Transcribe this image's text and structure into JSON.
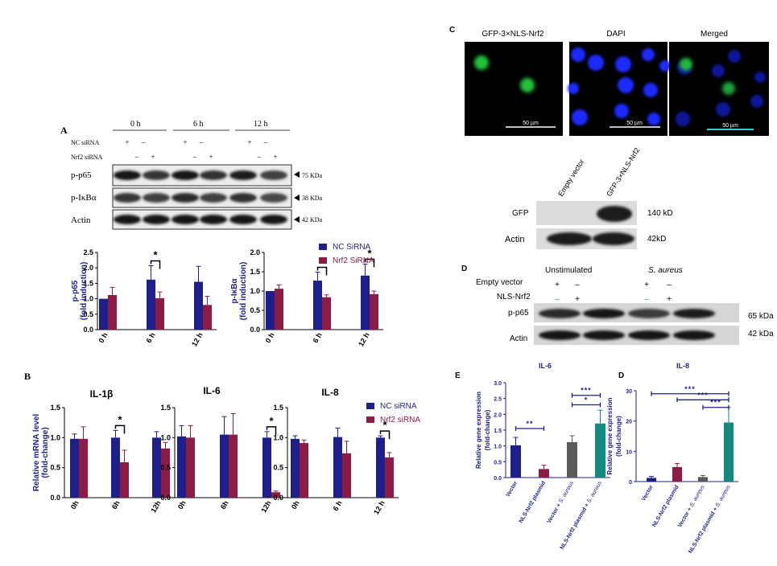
{
  "colors": {
    "navy": "#1f1f8c",
    "maroon": "#8c1c46",
    "gray": "#5a5a5a",
    "teal": "#128a80",
    "blot_bg": "#d9d9d9",
    "cyan": "#33cccc"
  },
  "panel_labels": {
    "a": "A",
    "b": "B",
    "c": "C",
    "d_top": "D",
    "e": "E",
    "d_bottom": "D"
  },
  "blot_a": {
    "groups": [
      "0 h",
      "6 h",
      "12 h"
    ],
    "row_labels": [
      "NC siRNA",
      "Nrf2 siRNA"
    ],
    "nc_signs": [
      "+",
      "–",
      "+",
      "–",
      "+",
      "–"
    ],
    "nrf_signs": [
      "–",
      "+",
      "–",
      "+",
      "–",
      "+"
    ],
    "bands": [
      {
        "label": "p-p65",
        "size": "75 KDa"
      },
      {
        "label": "p-IκBα",
        "size": "38 KDa"
      },
      {
        "label": "Actin",
        "size": "42 KDa"
      }
    ]
  },
  "blot_c": {
    "lanes": [
      "Empty vector",
      "GFP-3×NLS-Nrf2"
    ],
    "bands": [
      {
        "label": "GFP",
        "size": "140 kD"
      },
      {
        "label": "Actin",
        "size": "42kD"
      }
    ]
  },
  "blot_d": {
    "conditions": [
      "Unstimulated",
      "S. aureus"
    ],
    "row_labels": [
      "Empty vector",
      "NLS-Nrf2"
    ],
    "ev_signs": [
      "+",
      "–",
      "+",
      "–"
    ],
    "nls_signs": [
      "–",
      "+",
      "–",
      "+"
    ],
    "bands": [
      {
        "label": "p-p65",
        "size": "65 kDa"
      },
      {
        "label": "Actin",
        "size": "42 kDa"
      }
    ]
  },
  "microscopy": {
    "titles": [
      "GFP-3×NLS-Nrf2",
      "DAPI",
      "Merged"
    ],
    "scale": "50 µm"
  },
  "chart_data": [
    {
      "id": "A-p65",
      "type": "bar",
      "categories": [
        "0 h",
        "6 h",
        "12 h"
      ],
      "ylabel": "p-p65\n(fold induction)",
      "ylim": [
        0,
        2.5
      ],
      "yticks": [
        "0.0",
        "0.5",
        "1.0",
        "1.5",
        "2.0",
        "2.5"
      ],
      "series": [
        {
          "name": "NC SiRNA",
          "values": [
            1.0,
            1.62,
            1.55
          ],
          "errors": [
            0,
            0.45,
            0.5
          ]
        },
        {
          "name": "Nrf2 SiRNA",
          "values": [
            1.12,
            1.02,
            0.8
          ],
          "errors": [
            0.25,
            0.2,
            0.28
          ]
        }
      ],
      "annotations": [
        {
          "between": [
            "6 h"
          ],
          "text": "*"
        }
      ]
    },
    {
      "id": "A-ikba",
      "type": "bar",
      "categories": [
        "0 h",
        "6 h",
        "12 h"
      ],
      "ylabel": "p-IκBα\n(fold induction)",
      "ylim": [
        0,
        2.0
      ],
      "yticks": [
        "0.0",
        "0.5",
        "1.0",
        "1.5",
        "2.0"
      ],
      "series": [
        {
          "name": "NC SiRNA",
          "values": [
            1.0,
            1.27,
            1.4
          ],
          "errors": [
            0,
            0.22,
            0.3
          ]
        },
        {
          "name": "Nrf2 SiRNA",
          "values": [
            1.06,
            0.84,
            0.92
          ],
          "errors": [
            0.1,
            0.06,
            0.08
          ]
        }
      ],
      "annotations": [
        {
          "between": [
            "6 h"
          ],
          "text": "*"
        },
        {
          "between": [
            "12 h"
          ],
          "text": "*"
        }
      ],
      "legend": [
        "NC SiRNA",
        "Nrf2 SiRNA"
      ]
    },
    {
      "id": "B-il1b",
      "type": "bar",
      "title": "IL-1β",
      "categories": [
        "0h",
        "6h",
        "12h"
      ],
      "ylabel": "Relative mRNA level\n(fold-change)",
      "ylim": [
        0,
        1.5
      ],
      "yticks": [
        "0.0",
        "0.5",
        "1.0",
        "1.5"
      ],
      "series": [
        {
          "name": "NC siRNA",
          "values": [
            0.98,
            1.0,
            1.0
          ],
          "errors": [
            0.08,
            0.12,
            0.1
          ]
        },
        {
          "name": "Nrf2 siRNA",
          "values": [
            0.98,
            0.59,
            0.82
          ],
          "errors": [
            0.2,
            0.2,
            0.1
          ]
        }
      ],
      "annotations": [
        {
          "between": [
            "6h"
          ],
          "text": "*"
        }
      ]
    },
    {
      "id": "B-il6",
      "type": "bar",
      "title": "IL-6",
      "categories": [
        "0h",
        "6h",
        "12h"
      ],
      "ylim": [
        0,
        1.5
      ],
      "yticks": [
        "0.0",
        "0.5",
        "1.0",
        "1.5"
      ],
      "series": [
        {
          "name": "NC siRNA",
          "values": [
            1.02,
            1.05,
            1.0
          ],
          "errors": [
            0.18,
            0.3,
            0.1
          ]
        },
        {
          "name": "Nrf2 siRNA",
          "values": [
            1.0,
            1.05,
            0.09
          ],
          "errors": [
            0.2,
            0.35,
            0.02
          ]
        }
      ],
      "annotations": [
        {
          "between": [
            "12h"
          ],
          "text": "*"
        }
      ]
    },
    {
      "id": "B-il8",
      "type": "bar",
      "title": "IL-8",
      "categories": [
        "0h",
        "6 h",
        "12 h"
      ],
      "ylim": [
        0,
        1.5
      ],
      "yticks": [
        "0.0",
        "0.5",
        "1.0",
        "1.5"
      ],
      "series": [
        {
          "name": "NC siRNA",
          "values": [
            0.98,
            1.01,
            1.0
          ],
          "errors": [
            0.05,
            0.15,
            0.03
          ]
        },
        {
          "name": "Nrf2 siRNA",
          "values": [
            0.91,
            0.74,
            0.67
          ],
          "errors": [
            0.05,
            0.2,
            0.08
          ]
        }
      ],
      "annotations": [
        {
          "between": [
            "12 h"
          ],
          "text": "*"
        }
      ],
      "legend": [
        "NC siRNA",
        "Nrf2 siRNA"
      ]
    },
    {
      "id": "E-il6",
      "type": "bar",
      "title": "IL-6",
      "categories": [
        "Vector",
        "NLS-Nrf2 plasmid",
        "Vector + S. aureus",
        "NLS-Nrf2 plasmid + S. aureus"
      ],
      "ylabel": "Relative gene expression\n(fold-change)",
      "ylim": [
        0,
        3.0
      ],
      "yticks": [
        "0.0",
        "0.5",
        "1.0",
        "1.5",
        "2.0",
        "2.5",
        "3.0"
      ],
      "values": [
        1.02,
        0.27,
        1.12,
        1.71
      ],
      "errors": [
        0.25,
        0.12,
        0.2,
        0.42
      ],
      "annotations": [
        {
          "from": 0,
          "to": 1,
          "text": "**"
        },
        {
          "from": 2,
          "to": 3,
          "text": "***"
        },
        {
          "from": 2,
          "to": 3,
          "text": "*"
        }
      ]
    },
    {
      "id": "D-il8",
      "type": "bar",
      "title": "IL-8",
      "categories": [
        "Vector",
        "NLS-Nrf2 plasmid",
        "Vector + S. aureus",
        "NLS-Nrf2 plasmid + S. aureus"
      ],
      "ylabel": "Relative gene expression\n(fold-change)",
      "ylim": [
        0,
        30
      ],
      "yticks": [
        "0",
        "10",
        "20",
        "30"
      ],
      "values": [
        1.2,
        4.8,
        1.5,
        19.5
      ],
      "errors": [
        0.5,
        1.2,
        0.5,
        5.0
      ],
      "annotations": [
        {
          "from": 0,
          "to": 3,
          "text": "***"
        },
        {
          "from": 1,
          "to": 3,
          "text": "***"
        },
        {
          "from": 2,
          "to": 3,
          "text": "***"
        }
      ]
    }
  ]
}
